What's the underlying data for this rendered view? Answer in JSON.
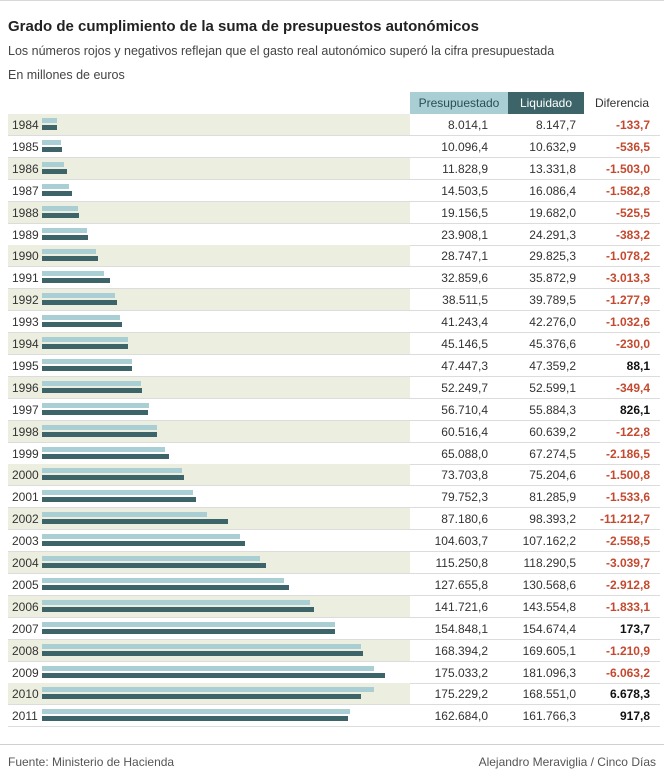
{
  "title": "Grado de cumplimiento de la suma de presupuestos autonómicos",
  "subtitle": "Los números rojos y negativos reflejan que el gasto real autonómico superó la cifra presupuestada",
  "unit_note": "En millones de euros",
  "headers": {
    "presupuestado": "Presupuestado",
    "liquidado": "Liquidado",
    "diferencia": "Diferencia"
  },
  "colors": {
    "presupuestado": "#a9cfd5",
    "liquidado": "#3d6468",
    "negative": "#c4492f",
    "positive": "#111111",
    "row_band": "#ecefe0"
  },
  "footer": {
    "source": "Fuente: Ministerio de Hacienda",
    "credit": "Alejandro Meraviglia / Cinco Días"
  },
  "chart_data": {
    "type": "bar",
    "orientation": "horizontal",
    "categories": [
      "1984",
      "1985",
      "1986",
      "1987",
      "1988",
      "1989",
      "1990",
      "1991",
      "1992",
      "1993",
      "1994",
      "1995",
      "1996",
      "1997",
      "1998",
      "1999",
      "2000",
      "2001",
      "2002",
      "2003",
      "2004",
      "2005",
      "2006",
      "2007",
      "2008",
      "2009",
      "2010",
      "2011"
    ],
    "series": [
      {
        "name": "Presupuestado",
        "values": [
          8014.1,
          10096.4,
          11828.9,
          14503.5,
          19156.5,
          23908.1,
          28747.1,
          32859.6,
          38511.5,
          41243.4,
          45146.5,
          47447.3,
          52249.7,
          56710.4,
          60516.4,
          65088.0,
          73703.8,
          79752.3,
          87180.6,
          104603.7,
          115250.8,
          127655.8,
          141721.6,
          154848.1,
          168394.2,
          175033.2,
          175229.2,
          162684.0
        ]
      },
      {
        "name": "Liquidado",
        "values": [
          8147.7,
          10632.9,
          13331.8,
          16086.4,
          19682.0,
          24291.3,
          29825.3,
          35872.9,
          39789.5,
          42276.0,
          45376.6,
          47359.2,
          52599.1,
          55884.3,
          60639.2,
          67274.5,
          75204.6,
          81285.9,
          98393.2,
          107162.2,
          118290.5,
          130568.6,
          143554.8,
          154674.4,
          169605.1,
          181096.3,
          168551.0,
          161766.3
        ]
      }
    ],
    "table": {
      "presupuestado": [
        "8.014,1",
        "10.096,4",
        "11.828,9",
        "14.503,5",
        "19.156,5",
        "23.908,1",
        "28.747,1",
        "32.859,6",
        "38.511,5",
        "41.243,4",
        "45.146,5",
        "47.447,3",
        "52.249,7",
        "56.710,4",
        "60.516,4",
        "65.088,0",
        "73.703,8",
        "79.752,3",
        "87.180,6",
        "104.603,7",
        "115.250,8",
        "127.655,8",
        "141.721,6",
        "154.848,1",
        "168.394,2",
        "175.033,2",
        "175.229,2",
        "162.684,0"
      ],
      "liquidado": [
        "8.147,7",
        "10.632,9",
        "13.331,8",
        "16.086,4",
        "19.682,0",
        "24.291,3",
        "29.825,3",
        "35.872,9",
        "39.789,5",
        "42.276,0",
        "45.376,6",
        "47.359,2",
        "52.599,1",
        "55.884,3",
        "60.639,2",
        "67.274,5",
        "75.204,6",
        "81.285,9",
        "98.393,2",
        "107.162,2",
        "118.290,5",
        "130.568,6",
        "143.554,8",
        "154.674,4",
        "169.605,1",
        "181.096,3",
        "168.551,0",
        "161.766,3"
      ],
      "diferencia": [
        "-133,7",
        "-536,5",
        "-1.503,0",
        "-1.582,8",
        "-525,5",
        "-383,2",
        "-1.078,2",
        "-3.013,3",
        "-1.277,9",
        "-1.032,6",
        "-230,0",
        "88,1",
        "-349,4",
        "826,1",
        "-122,8",
        "-2.186,5",
        "-1.500,8",
        "-1.533,6",
        "-11.212,7",
        "-2.558,5",
        "-3.039,7",
        "-2.912,8",
        "-1.833,1",
        "173,7",
        "-1.210,9",
        "-6.063,2",
        "6.678,3",
        "917,8"
      ]
    },
    "xlim": [
      0,
      181096.3
    ],
    "grid": false,
    "legend": "top-right"
  }
}
